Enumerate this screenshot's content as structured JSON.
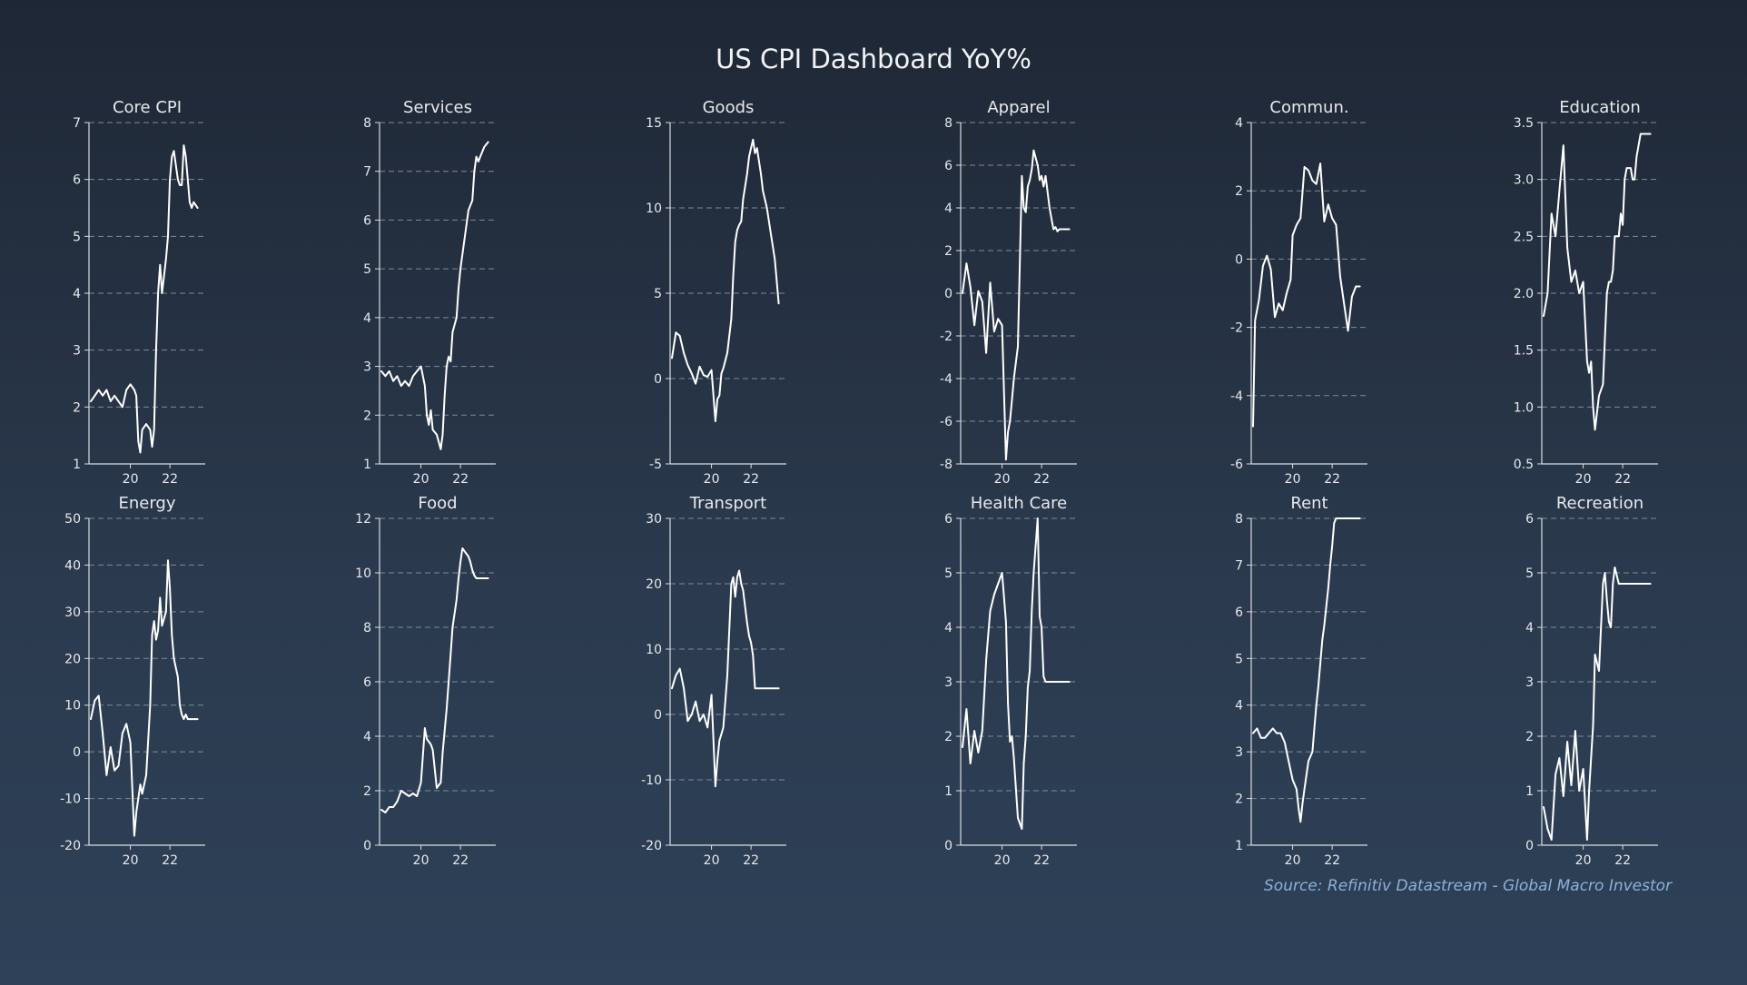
{
  "title": "US CPI Dashboard YoY%",
  "source": "Source: Refinitiv Datastream - Global Macro Investor",
  "colors": {
    "line": "#ffffff",
    "axis": "#d9dde3",
    "grid": "#7e8a99",
    "text": "#e6e9ee"
  },
  "chart_data": [
    {
      "type": "line",
      "title": "Core CPI",
      "ylim": [
        1,
        7
      ],
      "yticks": [
        "1",
        "2",
        "3",
        "4",
        "5",
        "6",
        "7"
      ],
      "xlim": [
        2018,
        2023.6
      ],
      "xticks": [
        {
          "value": 2020,
          "label": "20"
        },
        {
          "value": 2022,
          "label": "22"
        }
      ],
      "grid": true,
      "x": [
        2018.0,
        2018.2,
        2018.4,
        2018.6,
        2018.8,
        2019.0,
        2019.2,
        2019.4,
        2019.6,
        2019.8,
        2020.0,
        2020.2,
        2020.3,
        2020.4,
        2020.5,
        2020.6,
        2020.8,
        2021.0,
        2021.1,
        2021.2,
        2021.3,
        2021.4,
        2021.5,
        2021.6,
        2021.8,
        2021.9,
        2022.0,
        2022.1,
        2022.2,
        2022.4,
        2022.5,
        2022.6,
        2022.7,
        2022.8,
        2022.9,
        2023.0,
        2023.1,
        2023.2,
        2023.4
      ],
      "y": [
        2.1,
        2.2,
        2.3,
        2.2,
        2.3,
        2.1,
        2.2,
        2.1,
        2.0,
        2.3,
        2.4,
        2.3,
        2.2,
        1.4,
        1.2,
        1.6,
        1.7,
        1.6,
        1.3,
        1.6,
        3.0,
        4.0,
        4.5,
        4.0,
        4.6,
        5.0,
        6.0,
        6.4,
        6.5,
        6.0,
        5.9,
        5.9,
        6.6,
        6.4,
        6.0,
        5.6,
        5.5,
        5.6,
        5.5
      ]
    },
    {
      "type": "line",
      "title": "Services",
      "ylim": [
        1,
        8
      ],
      "yticks": [
        "1",
        "2",
        "3",
        "4",
        "5",
        "6",
        "7",
        "8"
      ],
      "xlim": [
        2018,
        2023.6
      ],
      "xticks": [
        {
          "value": 2020,
          "label": "20"
        },
        {
          "value": 2022,
          "label": "22"
        }
      ],
      "grid": true,
      "x": [
        2018.0,
        2018.2,
        2018.4,
        2018.6,
        2018.8,
        2019.0,
        2019.2,
        2019.4,
        2019.6,
        2019.8,
        2020.0,
        2020.2,
        2020.3,
        2020.4,
        2020.5,
        2020.6,
        2020.8,
        2021.0,
        2021.1,
        2021.2,
        2021.3,
        2021.4,
        2021.5,
        2021.6,
        2021.8,
        2021.9,
        2022.0,
        2022.1,
        2022.2,
        2022.4,
        2022.5,
        2022.6,
        2022.7,
        2022.8,
        2022.9,
        2023.0,
        2023.2,
        2023.4
      ],
      "y": [
        2.9,
        2.8,
        2.9,
        2.7,
        2.8,
        2.6,
        2.7,
        2.6,
        2.8,
        2.9,
        3.0,
        2.6,
        2.0,
        1.8,
        2.1,
        1.7,
        1.6,
        1.3,
        1.6,
        2.4,
        3.0,
        3.2,
        3.1,
        3.7,
        4.0,
        4.6,
        5.0,
        5.3,
        5.6,
        6.2,
        6.3,
        6.4,
        7.0,
        7.3,
        7.2,
        7.3,
        7.5,
        7.6
      ]
    },
    {
      "type": "line",
      "title": "Goods",
      "ylim": [
        -5,
        15
      ],
      "yticks": [
        "-5",
        "0",
        "5",
        "10",
        "15"
      ],
      "xlim": [
        2018,
        2023.6
      ],
      "xticks": [
        {
          "value": 2020,
          "label": "20"
        },
        {
          "value": 2022,
          "label": "22"
        }
      ],
      "grid": true,
      "x": [
        2018.0,
        2018.2,
        2018.4,
        2018.6,
        2018.8,
        2019.0,
        2019.2,
        2019.4,
        2019.6,
        2019.8,
        2020.0,
        2020.2,
        2020.3,
        2020.4,
        2020.5,
        2020.6,
        2020.8,
        2021.0,
        2021.1,
        2021.2,
        2021.3,
        2021.4,
        2021.5,
        2021.6,
        2021.8,
        2021.9,
        2022.0,
        2022.1,
        2022.2,
        2022.3,
        2022.5,
        2022.6,
        2022.8,
        2023.0,
        2023.2,
        2023.4
      ],
      "y": [
        1.2,
        2.7,
        2.5,
        1.5,
        0.8,
        0.3,
        -0.3,
        0.7,
        0.2,
        0.1,
        0.5,
        -2.5,
        -1.2,
        -1.0,
        0.3,
        0.6,
        1.5,
        3.5,
        6.0,
        8.0,
        8.7,
        9.0,
        9.2,
        10.5,
        12.0,
        13.0,
        13.5,
        14.0,
        13.2,
        13.5,
        12.0,
        11.0,
        10.0,
        8.5,
        7.0,
        4.4
      ]
    },
    {
      "type": "line",
      "title": "Apparel",
      "ylim": [
        -8,
        8
      ],
      "yticks": [
        "-8",
        "-6",
        "-4",
        "-2",
        "0",
        "2",
        "4",
        "6",
        "8"
      ],
      "xlim": [
        2018,
        2023.6
      ],
      "xticks": [
        {
          "value": 2020,
          "label": "20"
        },
        {
          "value": 2022,
          "label": "22"
        }
      ],
      "grid": true,
      "x": [
        2018.0,
        2018.2,
        2018.4,
        2018.6,
        2018.8,
        2019.0,
        2019.2,
        2019.4,
        2019.6,
        2019.8,
        2020.0,
        2020.2,
        2020.3,
        2020.4,
        2020.5,
        2020.6,
        2020.8,
        2021.0,
        2021.1,
        2021.2,
        2021.3,
        2021.4,
        2021.5,
        2021.6,
        2021.8,
        2021.9,
        2022.0,
        2022.1,
        2022.2,
        2022.4,
        2022.5,
        2022.6,
        2022.7,
        2022.8,
        2022.9,
        2023.0,
        2023.2,
        2023.4
      ],
      "y": [
        0.0,
        1.4,
        0.3,
        -1.5,
        0.1,
        -0.4,
        -2.8,
        0.5,
        -1.8,
        -1.2,
        -1.5,
        -7.8,
        -6.5,
        -6.0,
        -5.0,
        -4.0,
        -2.5,
        5.5,
        4.0,
        3.8,
        5.0,
        5.3,
        5.8,
        6.7,
        6.0,
        5.3,
        5.5,
        5.0,
        5.5,
        4.0,
        3.5,
        3.0,
        3.1,
        2.9,
        3.0,
        3.0,
        3.0,
        3.0
      ]
    },
    {
      "type": "line",
      "title": "Commun.",
      "ylim": [
        -6,
        4
      ],
      "yticks": [
        "-6",
        "-4",
        "-2",
        "0",
        "2",
        "4"
      ],
      "xlim": [
        2018,
        2023.6
      ],
      "xticks": [
        {
          "value": 2020,
          "label": "20"
        },
        {
          "value": 2022,
          "label": "22"
        }
      ],
      "grid": true,
      "x": [
        2018.0,
        2018.1,
        2018.3,
        2018.5,
        2018.7,
        2018.9,
        2019.1,
        2019.3,
        2019.5,
        2019.7,
        2019.9,
        2020.0,
        2020.2,
        2020.4,
        2020.6,
        2020.8,
        2021.0,
        2021.2,
        2021.4,
        2021.6,
        2021.8,
        2022.0,
        2022.2,
        2022.4,
        2022.6,
        2022.8,
        2023.0,
        2023.2,
        2023.4
      ],
      "y": [
        -4.9,
        -1.8,
        -1.2,
        -0.2,
        0.1,
        -0.3,
        -1.7,
        -1.3,
        -1.5,
        -1.0,
        -0.6,
        0.7,
        1.0,
        1.2,
        2.7,
        2.6,
        2.3,
        2.2,
        2.8,
        1.1,
        1.6,
        1.2,
        1.0,
        -0.5,
        -1.3,
        -2.1,
        -1.1,
        -0.8,
        -0.8
      ]
    },
    {
      "type": "line",
      "title": "Education",
      "ylim": [
        0.5,
        3.5
      ],
      "yticks": [
        "0.5",
        "1.0",
        "1.5",
        "2.0",
        "2.5",
        "3.0",
        "3.5"
      ],
      "xlim": [
        2018,
        2023.6
      ],
      "xticks": [
        {
          "value": 2020,
          "label": "20"
        },
        {
          "value": 2022,
          "label": "22"
        }
      ],
      "grid": true,
      "x": [
        2018.0,
        2018.2,
        2018.4,
        2018.6,
        2018.8,
        2019.0,
        2019.2,
        2019.4,
        2019.6,
        2019.8,
        2020.0,
        2020.2,
        2020.3,
        2020.4,
        2020.5,
        2020.6,
        2020.8,
        2021.0,
        2021.1,
        2021.2,
        2021.3,
        2021.4,
        2021.5,
        2021.6,
        2021.8,
        2021.9,
        2022.0,
        2022.1,
        2022.2,
        2022.4,
        2022.5,
        2022.6,
        2022.7,
        2022.8,
        2022.9,
        2023.0,
        2023.2,
        2023.4
      ],
      "y": [
        1.8,
        2.0,
        2.7,
        2.5,
        2.9,
        3.3,
        2.4,
        2.1,
        2.2,
        2.0,
        2.1,
        1.4,
        1.3,
        1.4,
        1.0,
        0.8,
        1.1,
        1.2,
        1.6,
        2.0,
        2.1,
        2.1,
        2.2,
        2.5,
        2.5,
        2.7,
        2.6,
        3.0,
        3.1,
        3.1,
        3.0,
        3.0,
        3.2,
        3.3,
        3.4,
        3.4,
        3.4,
        3.4
      ]
    },
    {
      "type": "line",
      "title": "Energy",
      "ylim": [
        -20,
        50
      ],
      "yticks": [
        "-20",
        "-10",
        "0",
        "10",
        "20",
        "30",
        "40",
        "50"
      ],
      "xlim": [
        2018,
        2023.6
      ],
      "xticks": [
        {
          "value": 2020,
          "label": "20"
        },
        {
          "value": 2022,
          "label": "22"
        }
      ],
      "grid": true,
      "x": [
        2018.0,
        2018.2,
        2018.4,
        2018.6,
        2018.8,
        2019.0,
        2019.2,
        2019.4,
        2019.6,
        2019.8,
        2020.0,
        2020.2,
        2020.3,
        2020.4,
        2020.5,
        2020.6,
        2020.8,
        2021.0,
        2021.1,
        2021.2,
        2021.3,
        2021.4,
        2021.5,
        2021.6,
        2021.8,
        2021.9,
        2022.0,
        2022.1,
        2022.2,
        2022.4,
        2022.5,
        2022.6,
        2022.7,
        2022.8,
        2022.9,
        2023.0,
        2023.2,
        2023.4
      ],
      "y": [
        7,
        11,
        12,
        4,
        -5,
        1,
        -4,
        -3,
        4,
        6,
        2,
        -18,
        -13,
        -10,
        -7,
        -9,
        -5,
        10,
        25,
        28,
        24,
        26,
        33,
        27,
        30,
        41,
        35,
        25,
        20,
        16,
        10,
        8,
        7,
        8,
        7,
        7,
        7,
        7
      ]
    },
    {
      "type": "line",
      "title": "Food",
      "ylim": [
        0,
        12
      ],
      "yticks": [
        "0",
        "2",
        "4",
        "6",
        "8",
        "10",
        "12"
      ],
      "xlim": [
        2018,
        2023.6
      ],
      "xticks": [
        {
          "value": 2020,
          "label": "20"
        },
        {
          "value": 2022,
          "label": "22"
        }
      ],
      "grid": true,
      "x": [
        2018.0,
        2018.2,
        2018.4,
        2018.6,
        2018.8,
        2019.0,
        2019.2,
        2019.4,
        2019.6,
        2019.8,
        2020.0,
        2020.2,
        2020.3,
        2020.4,
        2020.5,
        2020.6,
        2020.8,
        2021.0,
        2021.1,
        2021.2,
        2021.3,
        2021.4,
        2021.5,
        2021.6,
        2021.8,
        2021.9,
        2022.0,
        2022.1,
        2022.2,
        2022.4,
        2022.5,
        2022.6,
        2022.7,
        2022.8,
        2022.9,
        2023.0,
        2023.2,
        2023.4
      ],
      "y": [
        1.3,
        1.2,
        1.4,
        1.4,
        1.6,
        2.0,
        1.9,
        1.8,
        1.9,
        1.8,
        2.3,
        4.3,
        3.9,
        3.8,
        3.7,
        3.5,
        2.1,
        2.3,
        3.4,
        4.2,
        5.0,
        6.0,
        7.0,
        8.0,
        9.0,
        9.8,
        10.4,
        10.9,
        10.8,
        10.6,
        10.4,
        10.1,
        9.9,
        9.8,
        9.8,
        9.8,
        9.8,
        9.8
      ]
    },
    {
      "type": "line",
      "title": "Transport",
      "ylim": [
        -20,
        30
      ],
      "yticks": [
        "-20",
        "-10",
        "0",
        "10",
        "20",
        "30"
      ],
      "xlim": [
        2018,
        2023.6
      ],
      "xticks": [
        {
          "value": 2020,
          "label": "20"
        },
        {
          "value": 2022,
          "label": "22"
        }
      ],
      "grid": true,
      "x": [
        2018.0,
        2018.2,
        2018.4,
        2018.6,
        2018.8,
        2019.0,
        2019.2,
        2019.4,
        2019.6,
        2019.8,
        2020.0,
        2020.2,
        2020.3,
        2020.4,
        2020.5,
        2020.6,
        2020.8,
        2021.0,
        2021.1,
        2021.2,
        2021.3,
        2021.4,
        2021.5,
        2021.6,
        2021.8,
        2021.9,
        2022.0,
        2022.1,
        2022.2,
        2022.4,
        2022.5,
        2022.6,
        2022.7,
        2022.8,
        2022.9,
        2023.0,
        2023.2,
        2023.4
      ],
      "y": [
        4,
        6,
        7,
        4,
        -1,
        0,
        2,
        -1,
        0,
        -2,
        3,
        -11,
        -7,
        -4,
        -3,
        -2,
        6,
        20,
        21,
        18,
        21,
        22,
        20,
        19,
        14,
        12,
        11,
        9,
        4,
        4,
        4,
        4,
        4,
        4,
        4,
        4,
        4,
        4
      ]
    },
    {
      "type": "line",
      "title": "Health Care",
      "ylim": [
        0,
        6
      ],
      "yticks": [
        "0",
        "1",
        "2",
        "3",
        "4",
        "5",
        "6"
      ],
      "xlim": [
        2018,
        2023.6
      ],
      "xticks": [
        {
          "value": 2020,
          "label": "20"
        },
        {
          "value": 2022,
          "label": "22"
        }
      ],
      "grid": true,
      "x": [
        2018.0,
        2018.2,
        2018.4,
        2018.6,
        2018.8,
        2019.0,
        2019.2,
        2019.4,
        2019.6,
        2019.8,
        2020.0,
        2020.2,
        2020.3,
        2020.4,
        2020.5,
        2020.6,
        2020.8,
        2021.0,
        2021.1,
        2021.2,
        2021.3,
        2021.4,
        2021.5,
        2021.6,
        2021.8,
        2021.9,
        2022.0,
        2022.1,
        2022.2,
        2022.4,
        2022.5,
        2022.6,
        2022.7,
        2022.8,
        2022.9,
        2023.0,
        2023.2,
        2023.4
      ],
      "y": [
        1.8,
        2.5,
        1.5,
        2.1,
        1.7,
        2.1,
        3.4,
        4.3,
        4.6,
        4.8,
        5.0,
        4.1,
        2.6,
        1.9,
        2.0,
        1.6,
        0.5,
        0.3,
        1.5,
        2.0,
        2.9,
        3.2,
        4.3,
        5.0,
        6.0,
        4.2,
        4.0,
        3.1,
        3.0,
        3.0,
        3.0,
        3.0,
        3.0,
        3.0,
        3.0,
        3.0,
        3.0,
        3.0
      ]
    },
    {
      "type": "line",
      "title": "Rent",
      "ylim": [
        1,
        8
      ],
      "yticks": [
        "1",
        "2",
        "3",
        "4",
        "5",
        "6",
        "7",
        "8"
      ],
      "xlim": [
        2018,
        2023.6
      ],
      "xticks": [
        {
          "value": 2020,
          "label": "20"
        },
        {
          "value": 2022,
          "label": "22"
        }
      ],
      "grid": true,
      "x": [
        2018.0,
        2018.2,
        2018.4,
        2018.6,
        2018.8,
        2019.0,
        2019.2,
        2019.4,
        2019.6,
        2019.8,
        2020.0,
        2020.2,
        2020.3,
        2020.4,
        2020.5,
        2020.6,
        2020.8,
        2021.0,
        2021.1,
        2021.2,
        2021.3,
        2021.4,
        2021.5,
        2021.6,
        2021.8,
        2021.9,
        2022.0,
        2022.1,
        2022.2,
        2022.4,
        2022.5,
        2022.6,
        2022.7,
        2022.8,
        2022.9,
        2023.0,
        2023.2,
        2023.4
      ],
      "y": [
        3.4,
        3.5,
        3.3,
        3.3,
        3.4,
        3.5,
        3.4,
        3.4,
        3.2,
        2.8,
        2.4,
        2.2,
        1.8,
        1.5,
        1.9,
        2.2,
        2.8,
        3.0,
        3.5,
        4.0,
        4.4,
        4.9,
        5.4,
        5.7,
        6.5,
        7.0,
        7.4,
        7.9,
        8.0,
        8.0,
        8.0,
        8.0,
        8.0,
        8.0,
        8.0,
        8.0,
        8.0,
        8.0
      ]
    },
    {
      "type": "line",
      "title": "Recreation",
      "ylim": [
        0,
        6
      ],
      "yticks": [
        "0",
        "1",
        "2",
        "3",
        "4",
        "5",
        "6"
      ],
      "xlim": [
        2018,
        2023.6
      ],
      "xticks": [
        {
          "value": 2020,
          "label": "20"
        },
        {
          "value": 2022,
          "label": "22"
        }
      ],
      "grid": true,
      "x": [
        2018.0,
        2018.2,
        2018.4,
        2018.6,
        2018.8,
        2019.0,
        2019.2,
        2019.4,
        2019.6,
        2019.8,
        2020.0,
        2020.2,
        2020.3,
        2020.4,
        2020.5,
        2020.6,
        2020.8,
        2021.0,
        2021.1,
        2021.2,
        2021.3,
        2021.4,
        2021.5,
        2021.6,
        2021.8,
        2021.9,
        2022.0,
        2022.1,
        2022.2,
        2022.4,
        2022.5,
        2022.6,
        2022.7,
        2022.8,
        2022.9,
        2023.0,
        2023.2,
        2023.4
      ],
      "y": [
        0.7,
        0.3,
        0.1,
        1.3,
        1.6,
        0.9,
        1.9,
        1.1,
        2.1,
        1.0,
        1.4,
        0.1,
        1.0,
        1.6,
        2.2,
        3.5,
        3.2,
        4.8,
        5.0,
        4.5,
        4.1,
        4.0,
        4.8,
        5.1,
        4.8,
        4.8,
        4.8,
        4.8,
        4.8,
        4.8,
        4.8,
        4.8,
        4.8,
        4.8,
        4.8,
        4.8,
        4.8,
        4.8
      ]
    }
  ]
}
